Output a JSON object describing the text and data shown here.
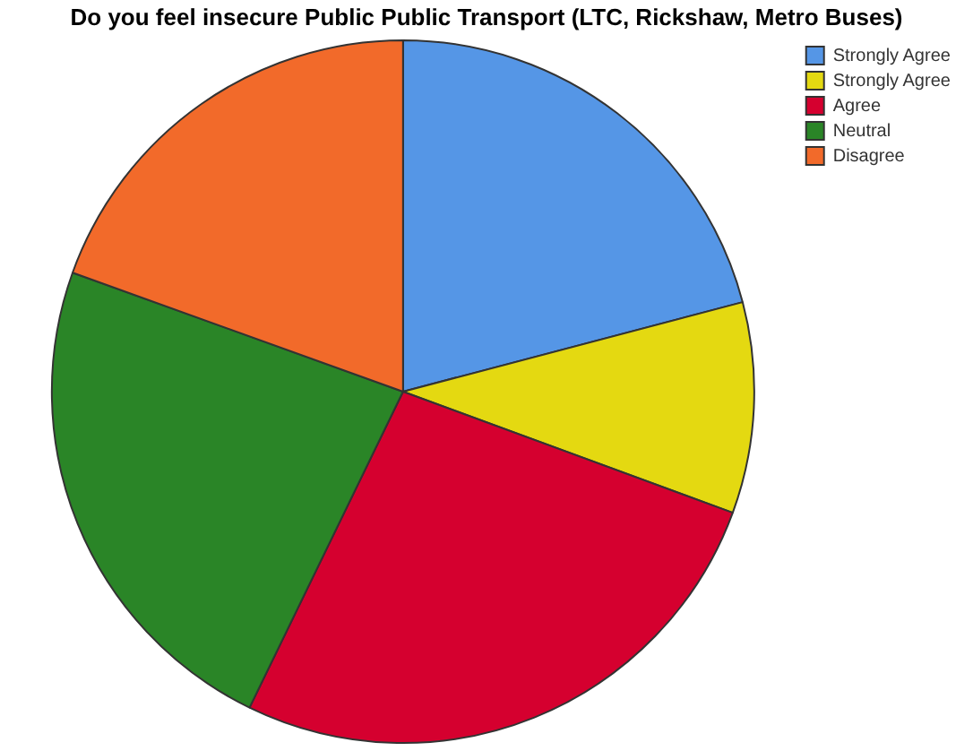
{
  "chart_data": {
    "type": "pie",
    "title": "Do you feel insecure Public Public Transport (LTC, Rickshaw, Metro Buses)",
    "categories": [
      "Strongly Agree",
      "Strongly Agree",
      "Agree",
      "Neutral",
      "Disagree"
    ],
    "values": [
      20.9,
      9.7,
      26.6,
      23.3,
      19.5
    ],
    "colors": [
      "#5596e6",
      "#e4d911",
      "#d5002f",
      "#2a8527",
      "#f26a2a"
    ],
    "legend": "top right"
  }
}
